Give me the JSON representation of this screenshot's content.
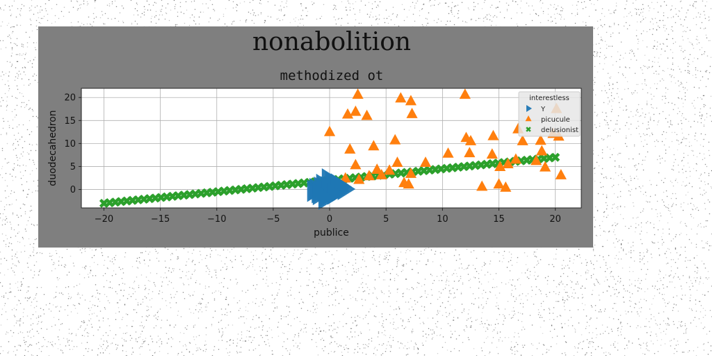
{
  "chart_data": {
    "type": "scatter",
    "suptitle": "nonabolition",
    "title": "methodized ot",
    "xlabel": "publice",
    "ylabel": "duodecahedron",
    "xlim": [
      -22,
      22.3
    ],
    "ylim": [
      -4,
      22
    ],
    "xticks": [
      -20,
      -15,
      -10,
      -5,
      0,
      5,
      10,
      15,
      20
    ],
    "yticks": [
      0,
      5,
      10,
      15,
      20
    ],
    "grid": true,
    "legend": {
      "title": "interestless",
      "placement": "top-right"
    },
    "series": [
      {
        "name": "Y",
        "marker": "triangle-right",
        "color": "#1f77b4",
        "points": [
          [
            -1.0,
            -0.6
          ],
          [
            -0.5,
            -0.2
          ],
          [
            -0.2,
            0.5
          ],
          [
            0.3,
            -0.1
          ],
          [
            -0.8,
            0.4
          ],
          [
            0.5,
            0.5
          ],
          [
            -0.3,
            -1.4
          ],
          [
            0.2,
            1.5
          ],
          [
            -1.2,
            0.1
          ],
          [
            0.8,
            -0.3
          ],
          [
            -0.6,
            1.0
          ],
          [
            1.0,
            0.6
          ],
          [
            0.0,
            -0.8
          ],
          [
            -1.4,
            -0.3
          ],
          [
            1.3,
            0.1
          ],
          [
            -0.1,
            2.2
          ],
          [
            -0.9,
            -1.0
          ],
          [
            0.7,
            1.1
          ],
          [
            0.4,
            -0.9
          ],
          [
            -0.4,
            -2.0
          ]
        ]
      },
      {
        "name": "picucule",
        "marker": "triangle-up",
        "color": "#ff7f0e",
        "points": [
          [
            0.0,
            12.5
          ],
          [
            1.6,
            16.3
          ],
          [
            2.3,
            16.9
          ],
          [
            2.5,
            20.6
          ],
          [
            3.3,
            16.0
          ],
          [
            6.3,
            19.8
          ],
          [
            7.2,
            19.2
          ],
          [
            7.3,
            16.4
          ],
          [
            5.8,
            10.7
          ],
          [
            1.8,
            8.7
          ],
          [
            3.9,
            9.4
          ],
          [
            2.3,
            5.3
          ],
          [
            1.4,
            2.4
          ],
          [
            2.6,
            2.1
          ],
          [
            3.5,
            2.9
          ],
          [
            4.2,
            4.3
          ],
          [
            4.6,
            3.1
          ],
          [
            5.3,
            4.1
          ],
          [
            6.0,
            5.8
          ],
          [
            7.2,
            3.4
          ],
          [
            6.6,
            1.4
          ],
          [
            7.0,
            1.1
          ],
          [
            8.5,
            5.8
          ],
          [
            10.5,
            7.8
          ],
          [
            12.0,
            20.6
          ],
          [
            12.1,
            11.2
          ],
          [
            12.5,
            10.5
          ],
          [
            12.4,
            7.9
          ],
          [
            13.5,
            0.6
          ],
          [
            14.5,
            11.6
          ],
          [
            14.4,
            7.6
          ],
          [
            15.1,
            4.9
          ],
          [
            15.0,
            1.1
          ],
          [
            15.6,
            0.4
          ],
          [
            15.8,
            5.5
          ],
          [
            16.5,
            6.5
          ],
          [
            16.7,
            13.1
          ],
          [
            17.1,
            10.5
          ],
          [
            18.7,
            10.6
          ],
          [
            18.8,
            8.3
          ],
          [
            19.1,
            4.8
          ],
          [
            19.8,
            12.1
          ],
          [
            20.1,
            17.5
          ],
          [
            20.3,
            11.5
          ],
          [
            20.5,
            3.1
          ],
          [
            18.3,
            6.2
          ]
        ]
      },
      {
        "name": "delusionist",
        "marker": "x-filled",
        "color": "#2ca02c",
        "x_start": -20.0,
        "x_end": 20.0,
        "count": 80,
        "y_start": -3.0,
        "y_end": 7.0
      }
    ]
  }
}
